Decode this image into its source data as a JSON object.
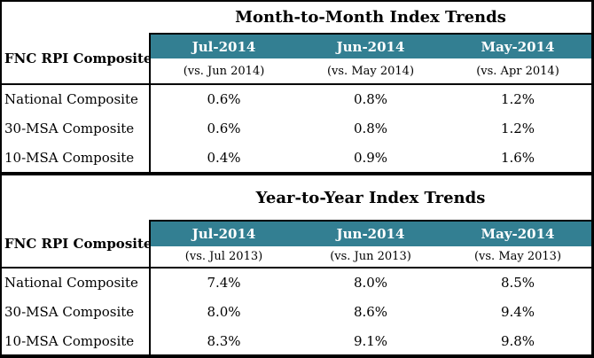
{
  "colors": {
    "header_bg": "#337f92",
    "header_text": "#ffffff",
    "border": "#000000",
    "text": "#000000",
    "background": "#ffffff"
  },
  "chart_data": [
    {
      "type": "table",
      "title": "Month-to-Month Index Trends",
      "row_header": "FNC RPI Composites",
      "columns": [
        "Jul-2014",
        "Jun-2014",
        "May-2014"
      ],
      "column_subtitles": [
        "(vs. Jun 2014)",
        "(vs. May 2014)",
        "(vs. Apr 2014)"
      ],
      "rows": [
        {
          "label": "National Composite",
          "values": [
            "0.6%",
            "0.8%",
            "1.2%"
          ]
        },
        {
          "label": "30-MSA Composite",
          "values": [
            "0.6%",
            "0.8%",
            "1.2%"
          ]
        },
        {
          "label": "10-MSA Composite",
          "values": [
            "0.4%",
            "0.9%",
            "1.6%"
          ]
        }
      ]
    },
    {
      "type": "table",
      "title": "Year-to-Year Index Trends",
      "row_header": "FNC RPI Composites",
      "columns": [
        "Jul-2014",
        "Jun-2014",
        "May-2014"
      ],
      "column_subtitles": [
        "(vs. Jul 2013)",
        "(vs. Jun 2013)",
        "(vs. May 2013)"
      ],
      "rows": [
        {
          "label": "National Composite",
          "values": [
            "7.4%",
            "8.0%",
            "8.5%"
          ]
        },
        {
          "label": "30-MSA Composite",
          "values": [
            "8.0%",
            "8.6%",
            "9.4%"
          ]
        },
        {
          "label": "10-MSA Composite",
          "values": [
            "8.3%",
            "9.1%",
            "9.8%"
          ]
        }
      ]
    }
  ]
}
